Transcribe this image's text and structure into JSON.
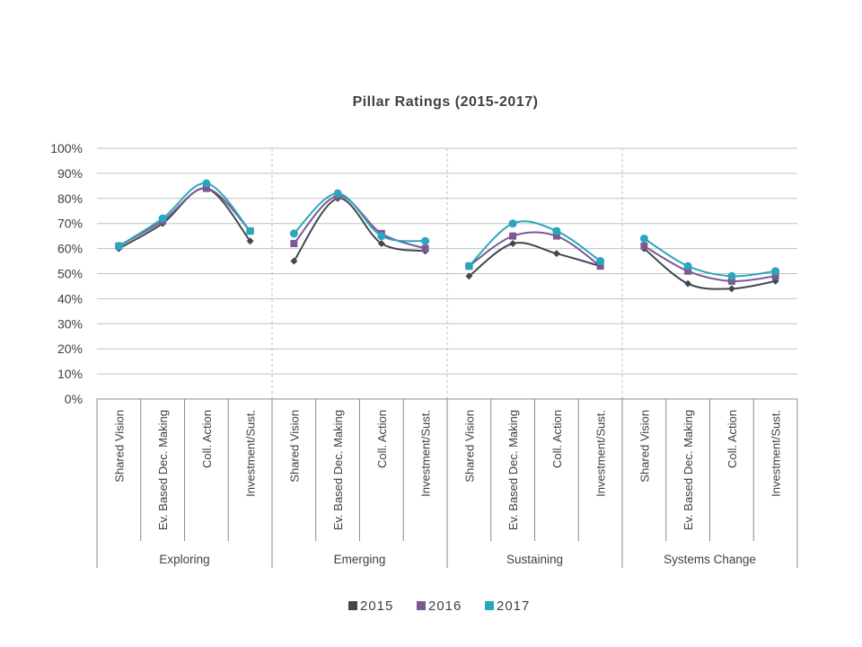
{
  "chart_data": {
    "type": "line",
    "title": "Pillar Ratings (2015-2017)",
    "ylim": [
      0,
      100
    ],
    "y_ticks": [
      "0%",
      "10%",
      "20%",
      "30%",
      "40%",
      "50%",
      "60%",
      "70%",
      "80%",
      "90%",
      "100%"
    ],
    "y_tick_values": [
      0,
      10,
      20,
      30,
      40,
      50,
      60,
      70,
      80,
      90,
      100
    ],
    "grid": true,
    "smooth": true,
    "legend_position": "bottom",
    "groups": [
      "Exploring",
      "Emerging",
      "Sustaining",
      "Systems Change"
    ],
    "subcategories": [
      "Shared Vision",
      "Ev. Based Dec. Making",
      "Coll. Action",
      "Investment/Sust."
    ],
    "series": [
      {
        "name": "2015",
        "color": "#3f4a4e",
        "marker": "diamond",
        "values": [
          [
            60,
            70,
            84,
            63
          ],
          [
            55,
            80,
            62,
            59
          ],
          [
            49,
            62,
            58,
            53
          ],
          [
            60,
            46,
            44,
            47
          ]
        ]
      },
      {
        "name": "2016",
        "color": "#7b5a93",
        "marker": "square",
        "values": [
          [
            61,
            71,
            84,
            67
          ],
          [
            62,
            81,
            66,
            60
          ],
          [
            53,
            65,
            65,
            53
          ],
          [
            61,
            51,
            47,
            49
          ]
        ]
      },
      {
        "name": "2017",
        "color": "#2aa6be",
        "marker": "circle",
        "values": [
          [
            61,
            72,
            86,
            67
          ],
          [
            66,
            82,
            65,
            63
          ],
          [
            53,
            70,
            67,
            55
          ],
          [
            64,
            53,
            49,
            51
          ]
        ]
      }
    ]
  }
}
